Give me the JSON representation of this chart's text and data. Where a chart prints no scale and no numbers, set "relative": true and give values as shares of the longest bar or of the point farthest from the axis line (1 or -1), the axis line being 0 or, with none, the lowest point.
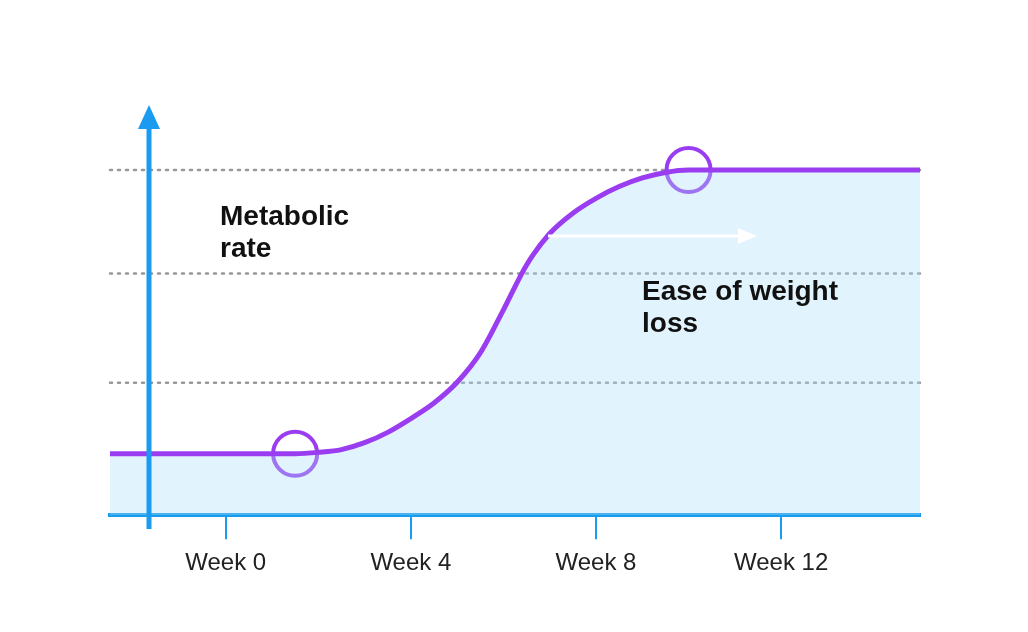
{
  "chart_data": {
    "type": "area",
    "relative": true,
    "annotations": [
      "Metabolic rate",
      "Ease of weight loss"
    ],
    "categories": [
      null,
      null,
      null,
      null,
      null,
      "Week 0",
      null,
      null,
      null,
      null,
      null,
      null,
      null,
      "Week 4",
      null,
      null,
      null,
      null,
      null,
      null,
      null,
      "Week 8",
      null,
      null,
      null,
      null,
      null,
      null,
      null,
      "Week 12",
      null,
      null,
      null,
      null,
      null,
      null
    ],
    "grid": false,
    "legend": false,
    "line_style": "solid",
    "ref_lines": [
      {
        "axis": "y",
        "value": 1,
        "color": "#999999",
        "line_style": "dotted"
      },
      {
        "axis": "y",
        "value": 0.7,
        "color": "#999999",
        "line_style": "dotted"
      },
      {
        "axis": "y",
        "value": 0.384,
        "color": "#999999",
        "line_style": "dotted"
      }
    ],
    "series": [
      {
        "color": "#9a3cf0",
        "marker": "none",
        "values": [
          0.178,
          0.178,
          0.178,
          0.178,
          0.178,
          0.178,
          0.178,
          0.178,
          0.178,
          0.182,
          0.19,
          0.21,
          0.24,
          0.28,
          0.325,
          0.385,
          0.47,
          0.595,
          0.725,
          0.816,
          0.875,
          0.918,
          0.952,
          0.977,
          0.993,
          1,
          1,
          1,
          1,
          1,
          1,
          1,
          1,
          1,
          1,
          1
        ]
      },
      {
        "type": "scatter",
        "color": "#9a3cf0",
        "marker": "circle",
        "values": [
          null,
          null,
          null,
          null,
          null,
          null,
          null,
          null,
          0.178,
          null,
          null,
          null,
          null,
          null,
          null,
          null,
          null,
          null,
          null,
          null,
          null,
          null,
          null,
          null,
          null,
          1,
          null,
          null,
          null,
          null,
          null,
          null,
          null,
          null,
          null,
          null
        ]
      }
    ]
  }
}
